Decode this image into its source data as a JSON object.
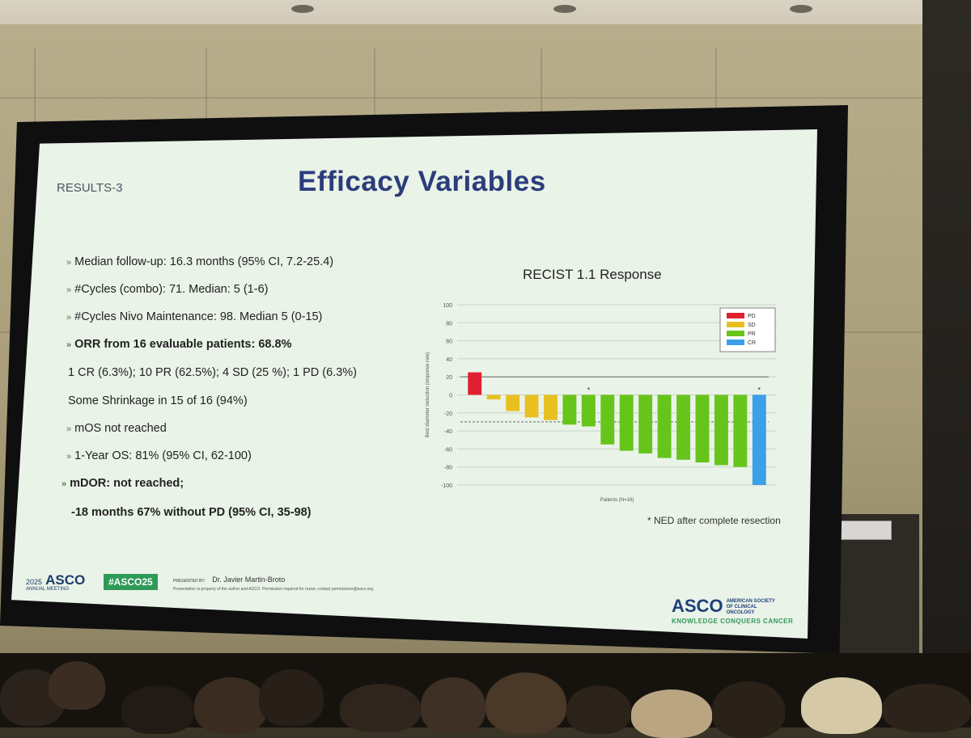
{
  "slide": {
    "header": "RESULTS-3",
    "title": "Efficacy Variables",
    "bullets": [
      {
        "text": "Median follow-up: 16.3 months (95% CI, 7.2-25.4)",
        "marker": true,
        "bold": false
      },
      {
        "text": "#Cycles (combo): 71. Median: 5 (1-6)",
        "marker": true,
        "bold": false
      },
      {
        "text": "#Cycles Nivo Maintenance: 98. Median 5 (0-15)",
        "marker": true,
        "bold": false
      },
      {
        "text": "ORR from 16 evaluable patients: 68.8%",
        "marker": true,
        "bold": true
      },
      {
        "text": "1 CR (6.3%); 10 PR (62.5%); 4 SD (25 %); 1 PD (6.3%)",
        "marker": false,
        "bold": false
      },
      {
        "text": "Some Shrinkage in 15 of 16 (94%)",
        "marker": false,
        "bold": false
      },
      {
        "text": "mOS not reached",
        "marker": true,
        "bold": false
      },
      {
        "text": "1-Year OS: 81% (95% CI, 62-100)",
        "marker": true,
        "bold": false
      },
      {
        "text": "mDOR: not reached;",
        "marker": true,
        "bold": true
      },
      {
        "text": "-18 months 67% without PD (95% CI, 35-98)",
        "marker": false,
        "bold": true
      }
    ],
    "chart_title": "RECIST 1.1 Response",
    "note": "* NED after complete resection",
    "footer": {
      "asco_year": "2025",
      "asco_name": "ASCO",
      "asco_sub": "ANNUAL MEETING",
      "hashtag": "#ASCO25",
      "presented_by": "PRESENTED BY:",
      "presenter": "Dr. Javier Martin-Broto",
      "disclaimer": "Presentation is property of the author and ASCO. Permission required for reuse; contact permissions@asco.org.",
      "brand": "ASCO",
      "society": "AMERICAN SOCIETY OF CLINICAL ONCOLOGY",
      "tagline": "KNOWLEDGE CONQUERS CANCER"
    }
  },
  "chart_data": {
    "type": "bar",
    "title": "RECIST 1.1 Response",
    "xlabel": "Patients (N=16)",
    "ylabel": "Best diameter reduction (response rate)",
    "ylim": [
      -100,
      100
    ],
    "yticks": [
      100,
      80,
      60,
      40,
      20,
      0,
      -20,
      -40,
      -60,
      -80,
      -100
    ],
    "reference_lines": [
      20,
      -30
    ],
    "values": [
      25,
      -5,
      -18,
      -25,
      -28,
      -33,
      -35,
      -55,
      -62,
      -65,
      -70,
      -72,
      -75,
      -78,
      -80,
      -100
    ],
    "response": [
      "PD",
      "SD",
      "SD",
      "SD",
      "SD",
      "PR",
      "PR",
      "PR",
      "PR",
      "PR",
      "PR",
      "PR",
      "PR",
      "PR",
      "PR",
      "CR"
    ],
    "starred": [
      6,
      15
    ],
    "legend": [
      {
        "label": "PD",
        "color": "#e02030"
      },
      {
        "label": "SD",
        "color": "#e8c020"
      },
      {
        "label": "PR",
        "color": "#66c41a"
      },
      {
        "label": "CR",
        "color": "#3aa0e8"
      }
    ],
    "legend_position": "top-right",
    "grid": true
  }
}
